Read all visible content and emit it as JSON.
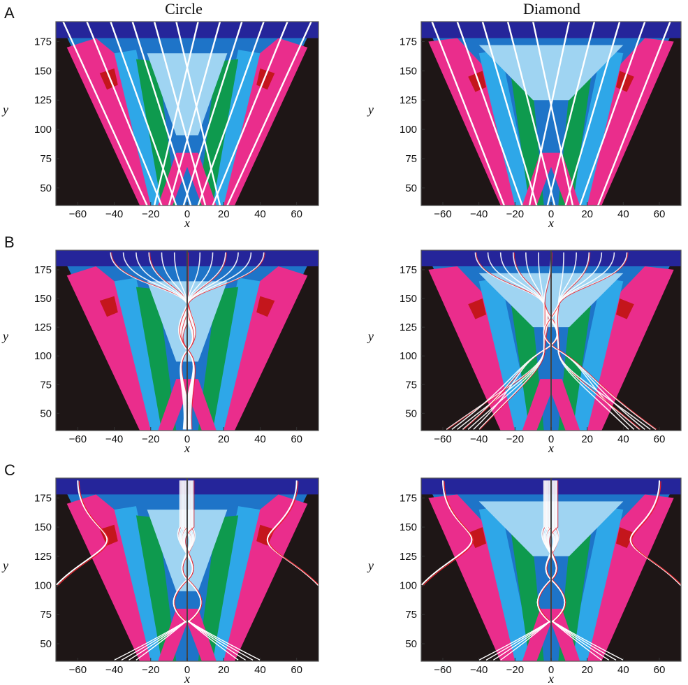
{
  "chart_data": {
    "type": "heatmap",
    "columns": [
      {
        "key": "circle",
        "label": "Circle"
      },
      {
        "key": "diamond",
        "label": "Diamond"
      }
    ],
    "rows": [
      {
        "label": "A"
      },
      {
        "label": "B"
      },
      {
        "label": "C"
      }
    ],
    "xlabel": "x",
    "ylabel": "y",
    "xlim": [
      -72,
      72
    ],
    "ylim": [
      35,
      192
    ],
    "xticks": [
      -60,
      -40,
      -20,
      0,
      20,
      40,
      60
    ],
    "yticks": [
      50,
      75,
      100,
      125,
      150,
      175
    ],
    "colors": {
      "background": "#1e1616",
      "pink": "#ea2d8c",
      "red": "#c4161c",
      "green": "#0e9a4e",
      "light_blue": "#2ea7e8",
      "mid_blue": "#1e74c8",
      "pale_blue": "#9fd4f2",
      "dark_blue": "#25259a",
      "trajectory_white": "#ffffff",
      "trajectory_red": "#e8202a"
    }
  }
}
